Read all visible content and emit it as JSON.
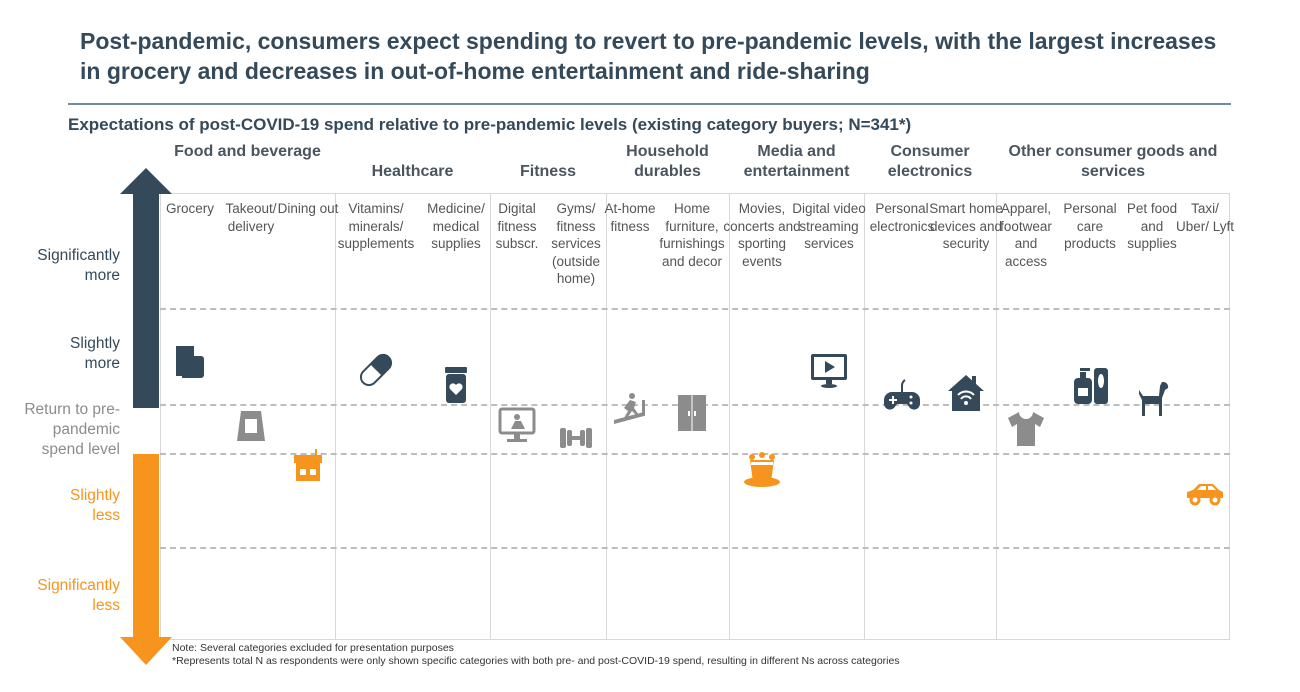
{
  "title": "Post-pandemic, consumers expect spending to revert to pre-pandemic levels, with the largest increases in grocery and decreases in out-of-home entertainment and ride-sharing",
  "colors": {
    "more": "#34495a",
    "neutral": "#8c8c8c",
    "less": "#f7941d",
    "title": "#34495a"
  },
  "chart_data": {
    "type": "scatter",
    "title": "Expectations of post-COVID-19 spend relative to pre-pandemic levels (existing category buyers; N=341*)",
    "y_levels": [
      {
        "label": "Significantly more",
        "value": 2,
        "color": "#34495a"
      },
      {
        "label": "Slightly more",
        "value": 1,
        "color": "#34495a"
      },
      {
        "label": "Return to pre-pandemic spend level",
        "value": 0,
        "color": "#8c8c8c"
      },
      {
        "label": "Slightly less",
        "value": -1,
        "color": "#f7941d"
      },
      {
        "label": "Significantly less",
        "value": -2,
        "color": "#f7941d"
      }
    ],
    "groups": [
      {
        "label": "Food and beverage",
        "categories": [
          {
            "label": "Grocery",
            "value": 0.95,
            "icon": "grocery-icon",
            "tone": "more"
          },
          {
            "label": "Takeout/ delivery",
            "value": 0.09,
            "icon": "takeout-bag-icon",
            "tone": "neutral"
          },
          {
            "label": "Dining out",
            "value": -0.62,
            "icon": "restaurant-icon",
            "tone": "less"
          }
        ]
      },
      {
        "label": "Healthcare",
        "categories": [
          {
            "label": "Vitamins/ minerals/ supplements",
            "value": 0.86,
            "icon": "pill-capsule-icon",
            "tone": "more"
          },
          {
            "label": "Medicine/ medical supplies",
            "value": 0.71,
            "icon": "medicine-bottle-icon",
            "tone": "more"
          }
        ]
      },
      {
        "label": "Fitness",
        "categories": [
          {
            "label": "Digital fitness subscr.",
            "value": 0.09,
            "icon": "screen-exercise-bike-icon",
            "tone": "neutral"
          },
          {
            "label": "Gyms/ fitness services (outside home)",
            "value": -0.17,
            "icon": "dumbbell-icon",
            "tone": "neutral"
          }
        ]
      },
      {
        "label": "Household durables",
        "categories": [
          {
            "label": "At-home fitness",
            "value": 0.4,
            "icon": "treadmill-icon",
            "tone": "neutral"
          },
          {
            "label": "Home furniture, furnishings and decor",
            "value": 0.34,
            "icon": "wardrobe-icon",
            "tone": "neutral"
          }
        ]
      },
      {
        "label": "Media and entertainment",
        "categories": [
          {
            "label": "Movies, concerts and sporting events",
            "value": -0.67,
            "icon": "popcorn-icon",
            "tone": "less"
          },
          {
            "label": "Digital video streaming services",
            "value": 0.86,
            "icon": "video-monitor-icon",
            "tone": "more"
          }
        ]
      },
      {
        "label": "Consumer electronics",
        "categories": [
          {
            "label": "Personal electronics",
            "value": 0.59,
            "icon": "gamepad-icon",
            "tone": "more"
          },
          {
            "label": "Smart home devices and security",
            "value": 0.62,
            "icon": "smart-home-icon",
            "tone": "more"
          }
        ]
      },
      {
        "label": "Other consumer goods and services",
        "categories": [
          {
            "label": "Apparel, footwear and access",
            "value": 0.03,
            "icon": "tshirt-icon",
            "tone": "neutral"
          },
          {
            "label": "Personal care products",
            "value": 0.7,
            "icon": "lotion-bottles-icon",
            "tone": "more"
          },
          {
            "label": "Pet food and supplies",
            "value": 0.57,
            "icon": "dog-icon",
            "tone": "more"
          },
          {
            "label": "Taxi/ Uber/ Lyft",
            "value": -0.9,
            "icon": "car-icon",
            "tone": "less"
          }
        ]
      }
    ]
  },
  "notes": [
    "Note: Several categories excluded for presentation purposes",
    "*Represents total N as respondents were only shown specific categories with both pre- and post-COVID-19 spend, resulting in different Ns across categories"
  ]
}
